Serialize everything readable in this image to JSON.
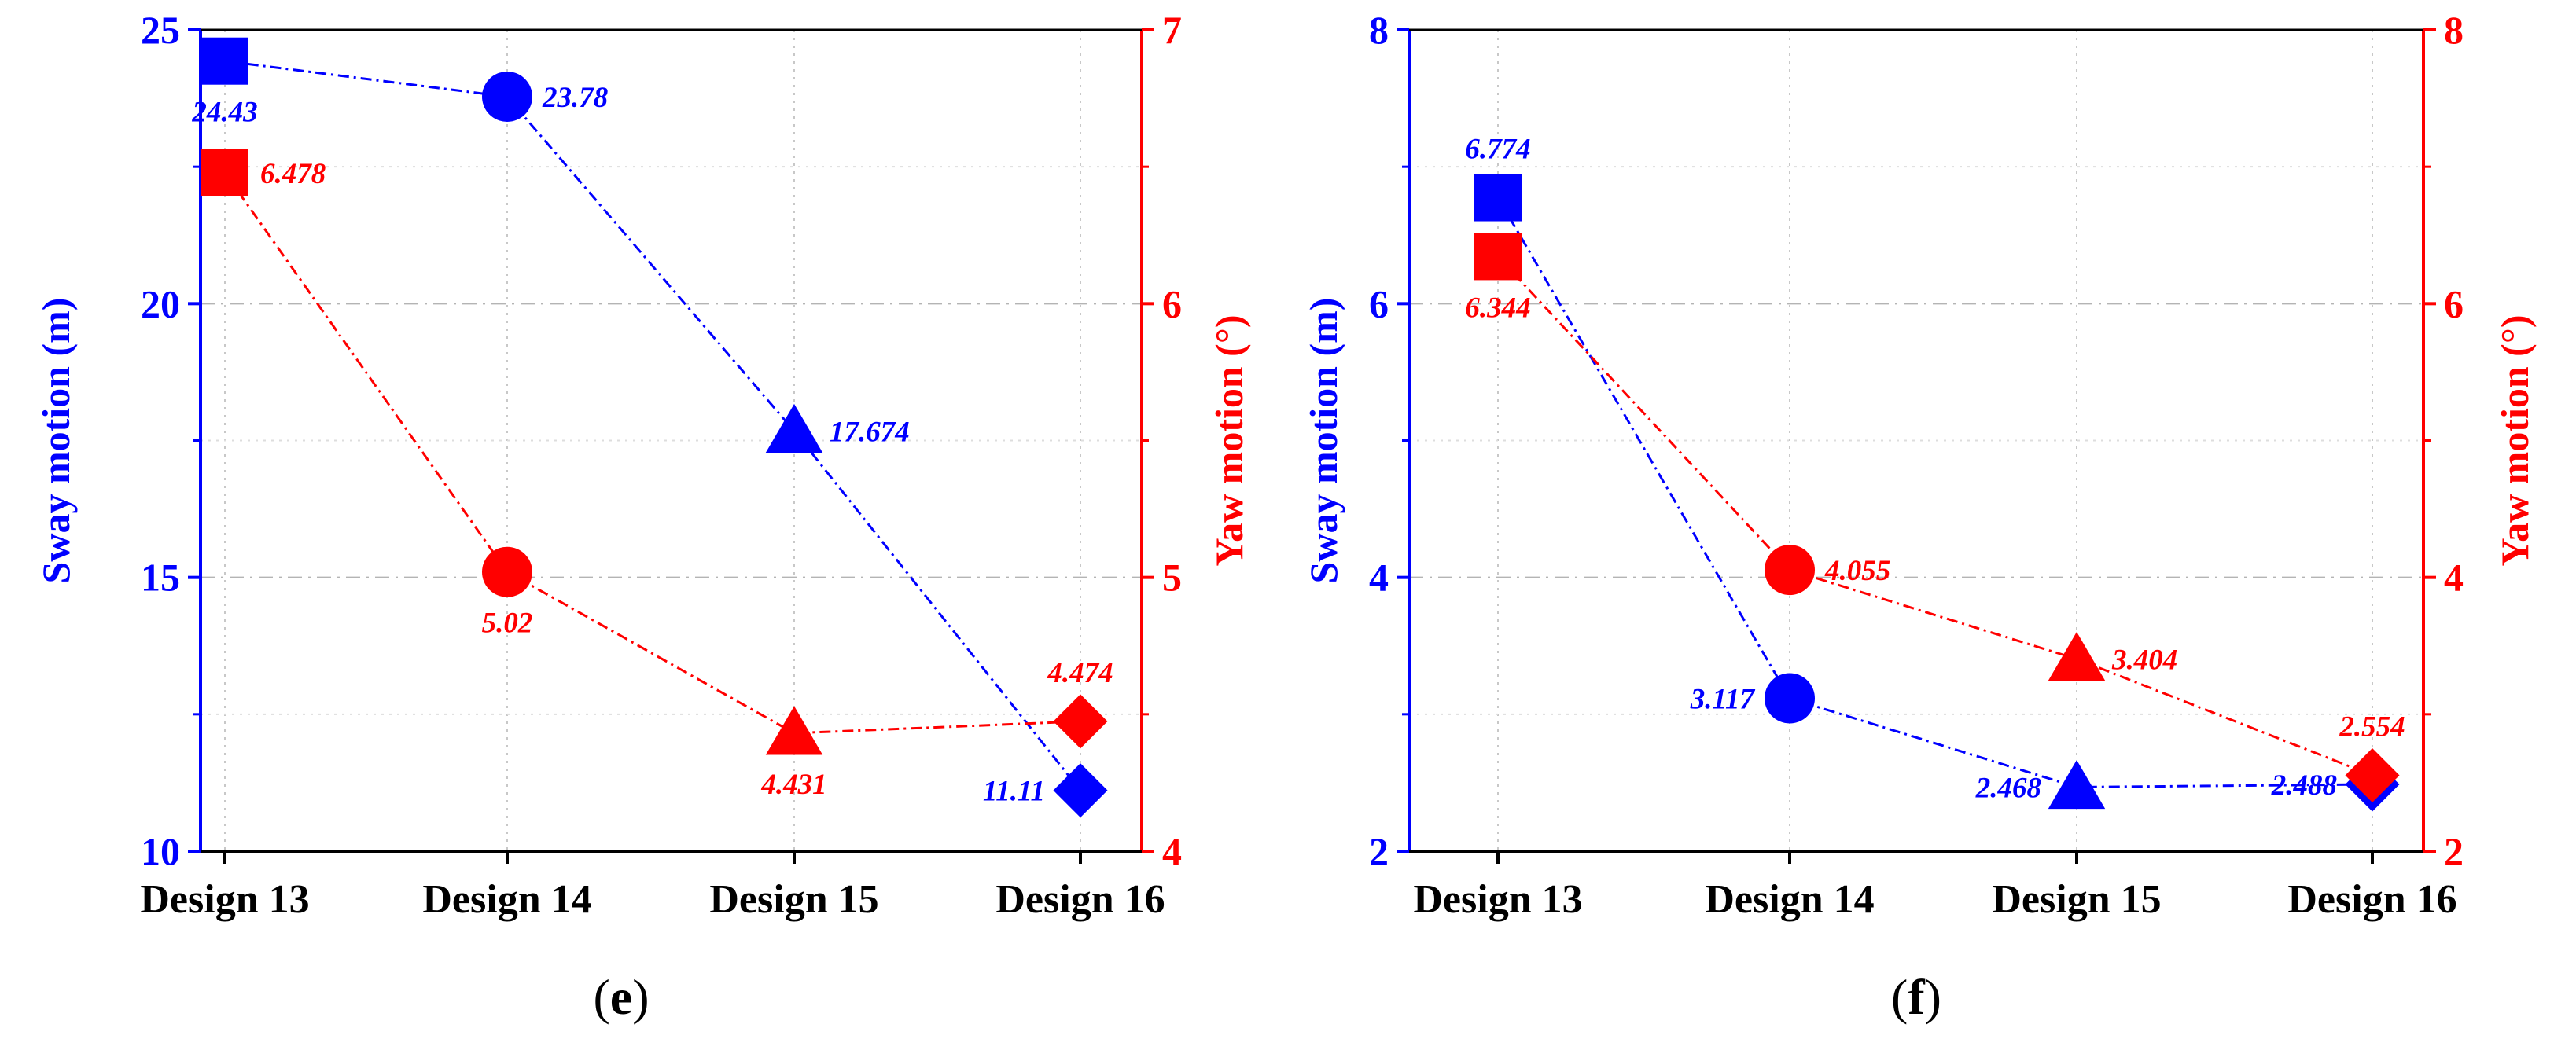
{
  "colors": {
    "sway": "#0000ff",
    "yaw": "#ff0000",
    "axis": "#000000"
  },
  "chart_data": [
    {
      "type": "line",
      "panel_label_open": "(",
      "panel_label_letter": "e",
      "panel_label_close": ")",
      "categories": [
        "Design 13",
        "Design 14",
        "Design 15",
        "Design 16"
      ],
      "markers": [
        "square",
        "circle",
        "triangle",
        "diamond"
      ],
      "left_axis": {
        "label": "Sway motion (m)",
        "ylim": [
          10,
          25
        ],
        "ticks": [
          10,
          15,
          20,
          25
        ],
        "tick_labels": [
          "10",
          "15",
          "20",
          "25"
        ]
      },
      "right_axis": {
        "label": "Yaw motion (°)",
        "ylim": [
          4,
          7
        ],
        "ticks": [
          4,
          5,
          6,
          7
        ],
        "tick_labels": [
          "4",
          "5",
          "6",
          "7"
        ]
      },
      "series": [
        {
          "name": "Sway motion",
          "axis": "left",
          "values": [
            24.43,
            23.78,
            17.674,
            11.11
          ],
          "labels": [
            "24.43",
            "23.78",
            "17.674",
            "11.11"
          ],
          "label_pos": [
            "below",
            "right",
            "right",
            "left"
          ]
        },
        {
          "name": "Yaw motion",
          "axis": "right",
          "values": [
            6.478,
            5.02,
            4.431,
            4.474
          ],
          "labels": [
            "6.478",
            "5.02",
            "4.431",
            "4.474"
          ],
          "label_pos": [
            "right",
            "below",
            "below",
            "above"
          ]
        }
      ]
    },
    {
      "type": "line",
      "panel_label_open": "(",
      "panel_label_letter": "f",
      "panel_label_close": ")",
      "categories": [
        "Design 13",
        "Design 14",
        "Design 15",
        "Design 16"
      ],
      "markers": [
        "square",
        "circle",
        "triangle",
        "diamond"
      ],
      "left_axis": {
        "label": "Sway motion (m)",
        "ylim": [
          2,
          8
        ],
        "ticks": [
          2,
          4,
          6,
          8
        ],
        "tick_labels": [
          "2",
          "4",
          "6",
          "8"
        ]
      },
      "right_axis": {
        "label": "Yaw motion (°)",
        "ylim": [
          2,
          8
        ],
        "ticks": [
          2,
          4,
          6,
          8
        ],
        "tick_labels": [
          "2",
          "4",
          "6",
          "8"
        ]
      },
      "series": [
        {
          "name": "Sway motion",
          "axis": "left",
          "values": [
            6.774,
            3.117,
            2.468,
            2.488
          ],
          "labels": [
            "6.774",
            "3.117",
            "2.468",
            "2.488"
          ],
          "label_pos": [
            "above",
            "left",
            "left",
            "left"
          ]
        },
        {
          "name": "Yaw motion",
          "axis": "right",
          "values": [
            6.344,
            4.055,
            3.404,
            2.554
          ],
          "labels": [
            "6.344",
            "4.055",
            "3.404",
            "2.554"
          ],
          "label_pos": [
            "below",
            "right",
            "right",
            "above"
          ]
        }
      ]
    }
  ]
}
